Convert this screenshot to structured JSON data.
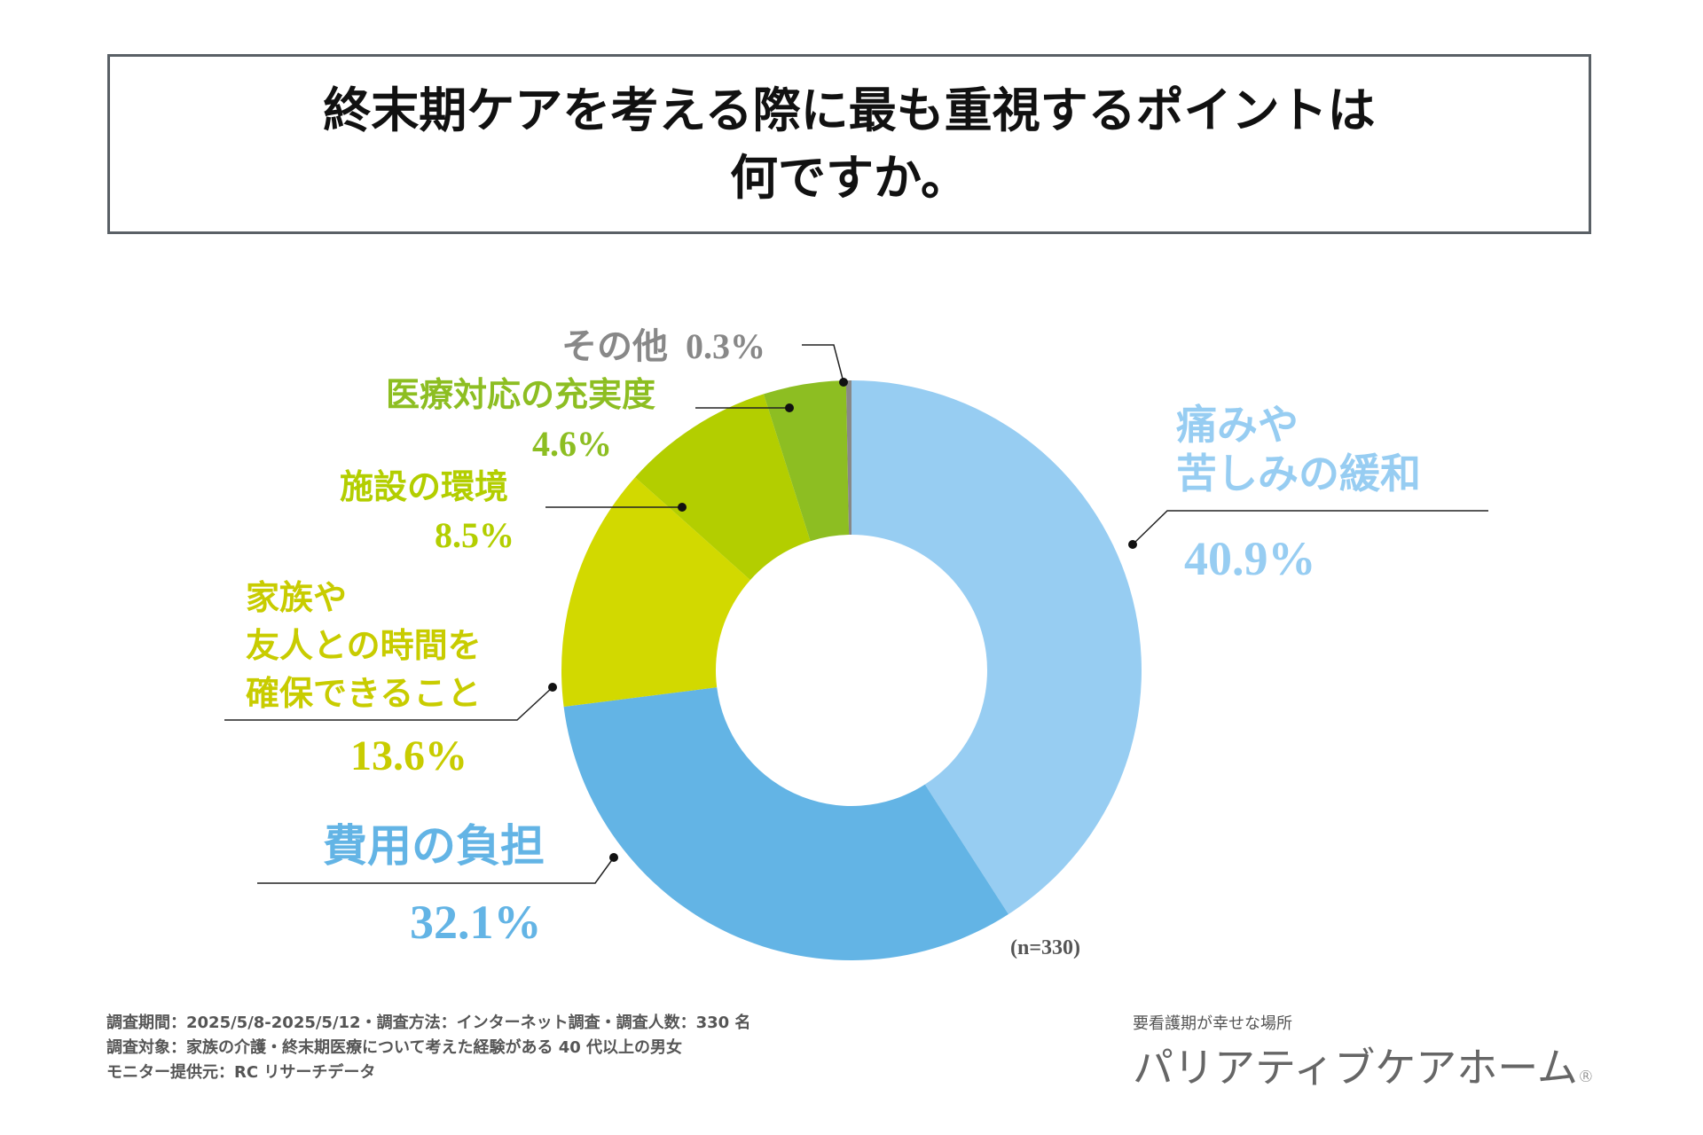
{
  "title": {
    "line1": "終末期ケアを考える際に最も重視するポイントは",
    "line2": "何ですか。"
  },
  "chart_data": {
    "type": "pie",
    "variant": "donut",
    "start": "top, clockwise",
    "sample_note": "(n=330)",
    "slices": [
      {
        "label_lines": [
          "痛みや",
          "苦しみの緩和"
        ],
        "value": 40.9,
        "value_label": "40.9%",
        "color": "#97cdf2"
      },
      {
        "label_lines": [
          "費用の負担"
        ],
        "value": 32.1,
        "value_label": "32.1%",
        "color": "#63b4e5"
      },
      {
        "label_lines": [
          "家族や",
          "友人との時間を",
          "確保できること"
        ],
        "value": 13.6,
        "value_label": "13.6%",
        "color": "#d2d900"
      },
      {
        "label_lines": [
          "施設の環境"
        ],
        "value": 8.5,
        "value_label": "8.5%",
        "color": "#b3ce00"
      },
      {
        "label_lines": [
          "医療対応の充実度"
        ],
        "value": 4.6,
        "value_label": "4.6%",
        "color": "#8dbe22"
      },
      {
        "label_lines": [
          "その他"
        ],
        "value": 0.3,
        "value_label": "0.3%",
        "color": "#888888"
      }
    ]
  },
  "footer": {
    "line1": "調査期間：2025/5/8-2025/5/12・調査方法：インターネット調査・調査人数：330 名",
    "line2": "調査対象：家族の介護・終末期医療について考えた経験がある 40 代以上の男女",
    "line3": "モニター提供元：RC リサーチデータ"
  },
  "logo": {
    "tagline": "要看護期が幸せな場所",
    "name": "パリアティブケアホーム",
    "mark": "®"
  }
}
